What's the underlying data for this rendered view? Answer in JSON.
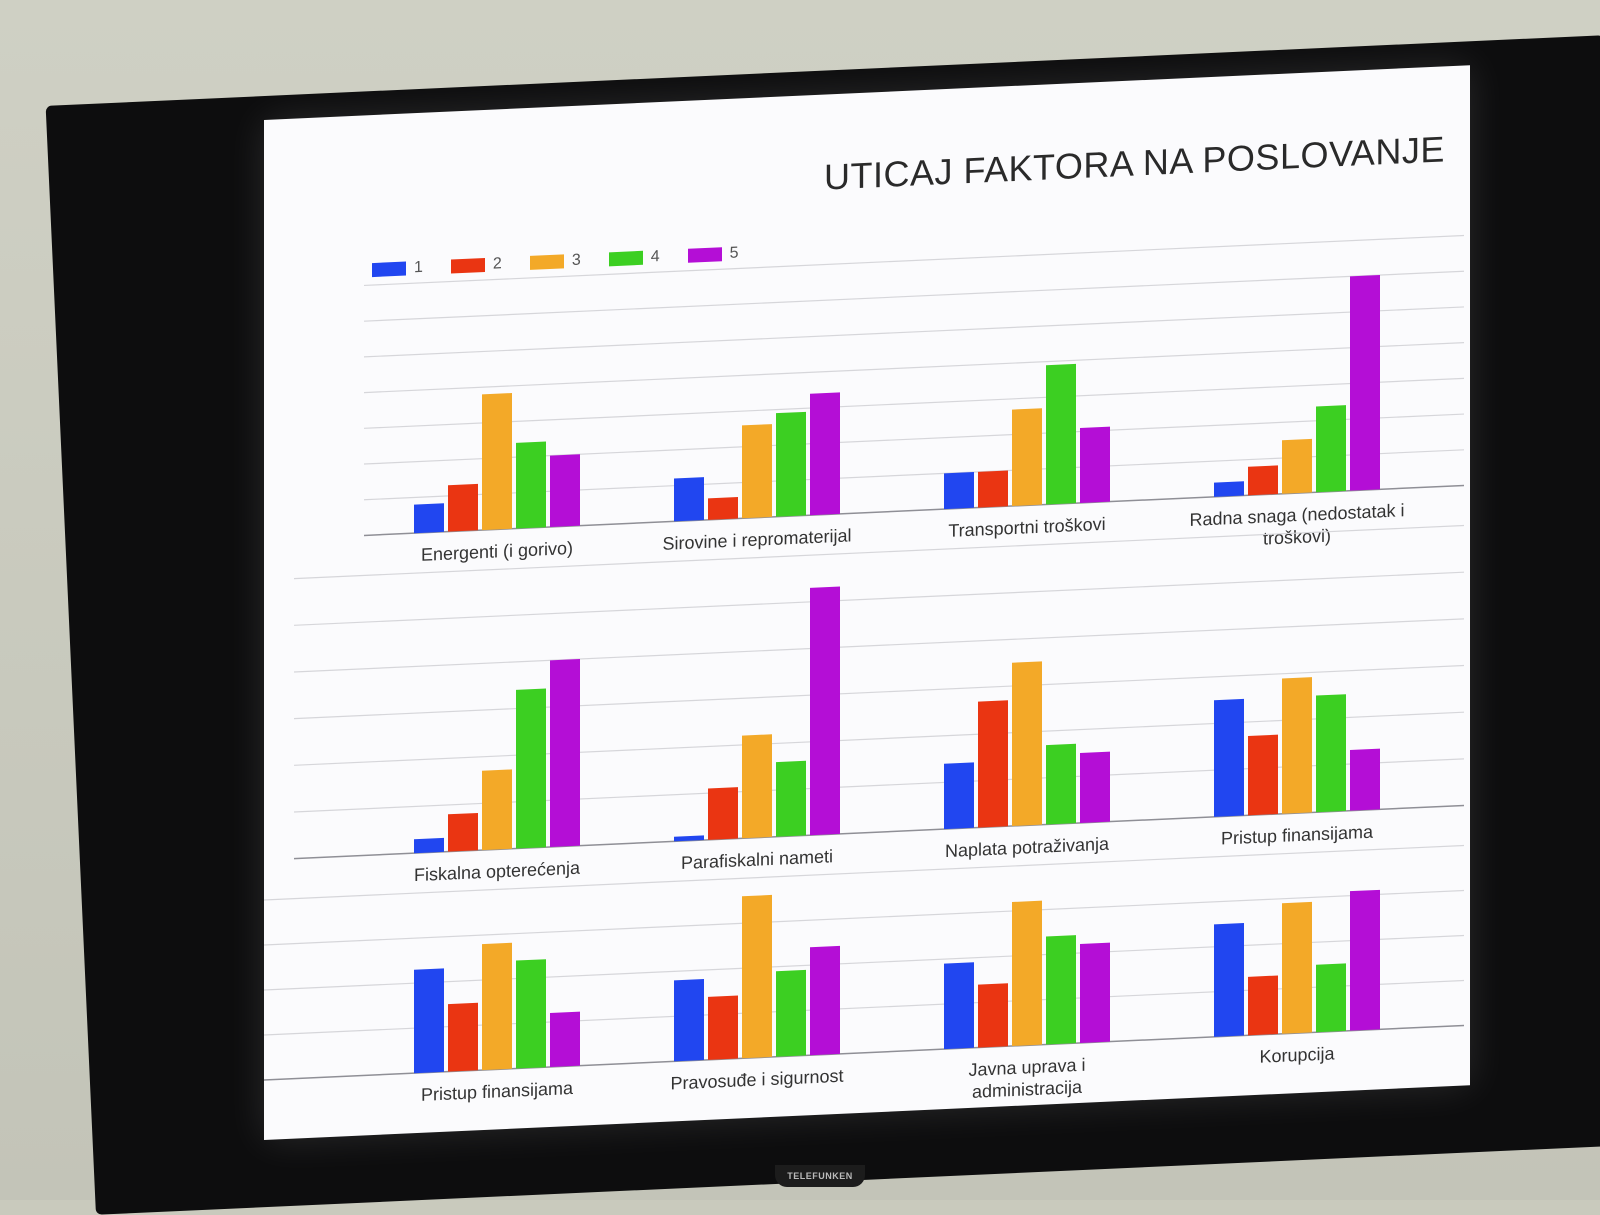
{
  "title": "UTICAJ FAKTORA NA POSLOVANJE",
  "legend": [
    {
      "label": "1",
      "color": "#2146f0"
    },
    {
      "label": "2",
      "color": "#ea3512"
    },
    {
      "label": "3",
      "color": "#f3a928"
    },
    {
      "label": "4",
      "color": "#3ccf22"
    },
    {
      "label": "5",
      "color": "#b40ed6"
    }
  ],
  "brand": "TELEFUNKEN",
  "chart_data": {
    "type": "bar",
    "series_names": [
      "1",
      "2",
      "3",
      "4",
      "5"
    ],
    "colors": [
      "#2146f0",
      "#ea3512",
      "#f3a928",
      "#3ccf22",
      "#b40ed6"
    ],
    "rows": [
      {
        "ymax": 7,
        "groups": [
          {
            "label": [
              "Energenti (i gorivo)"
            ],
            "values": [
              0.8,
              1.3,
              3.8,
              2.4,
              2.0
            ]
          },
          {
            "label": [
              "Sirovine i repromaterijal"
            ],
            "values": [
              1.2,
              0.6,
              2.6,
              2.9,
              3.4
            ]
          },
          {
            "label": [
              "Transportni troškovi"
            ],
            "values": [
              1.0,
              1.0,
              2.7,
              3.9,
              2.1
            ]
          },
          {
            "label": [
              "Radna snaga (nedostatak i",
              "troškovi)"
            ],
            "values": [
              0.4,
              0.8,
              1.5,
              2.4,
              6.0
            ]
          }
        ]
      },
      {
        "ymax": 6,
        "groups": [
          {
            "label": [
              "Fiskalna opterećenja"
            ],
            "values": [
              0.3,
              0.8,
              1.7,
              3.4,
              4.0
            ]
          },
          {
            "label": [
              "Parafiskalni nameti"
            ],
            "values": [
              0.1,
              1.1,
              2.2,
              1.6,
              5.3
            ]
          },
          {
            "label": [
              "Naplata potraživanja"
            ],
            "values": [
              1.4,
              2.7,
              3.5,
              1.7,
              1.5
            ]
          },
          {
            "label": [
              "Pristup finansijama"
            ],
            "values": [
              2.5,
              1.7,
              2.9,
              2.5,
              1.3
            ]
          }
        ]
      },
      {
        "ymax": 4,
        "groups": [
          {
            "label": [
              "Pristup finansijama"
            ],
            "values": [
              2.3,
              1.5,
              2.8,
              2.4,
              1.2
            ]
          },
          {
            "label": [
              "Pravosuđe i sigurnost"
            ],
            "values": [
              1.8,
              1.4,
              3.6,
              1.9,
              2.4
            ]
          },
          {
            "label": [
              "Javna uprava i",
              "administracija"
            ],
            "values": [
              1.9,
              1.4,
              3.2,
              2.4,
              2.2
            ]
          },
          {
            "label": [
              "Korupcija"
            ],
            "values": [
              2.5,
              1.3,
              2.9,
              1.5,
              3.1
            ]
          }
        ]
      }
    ]
  }
}
